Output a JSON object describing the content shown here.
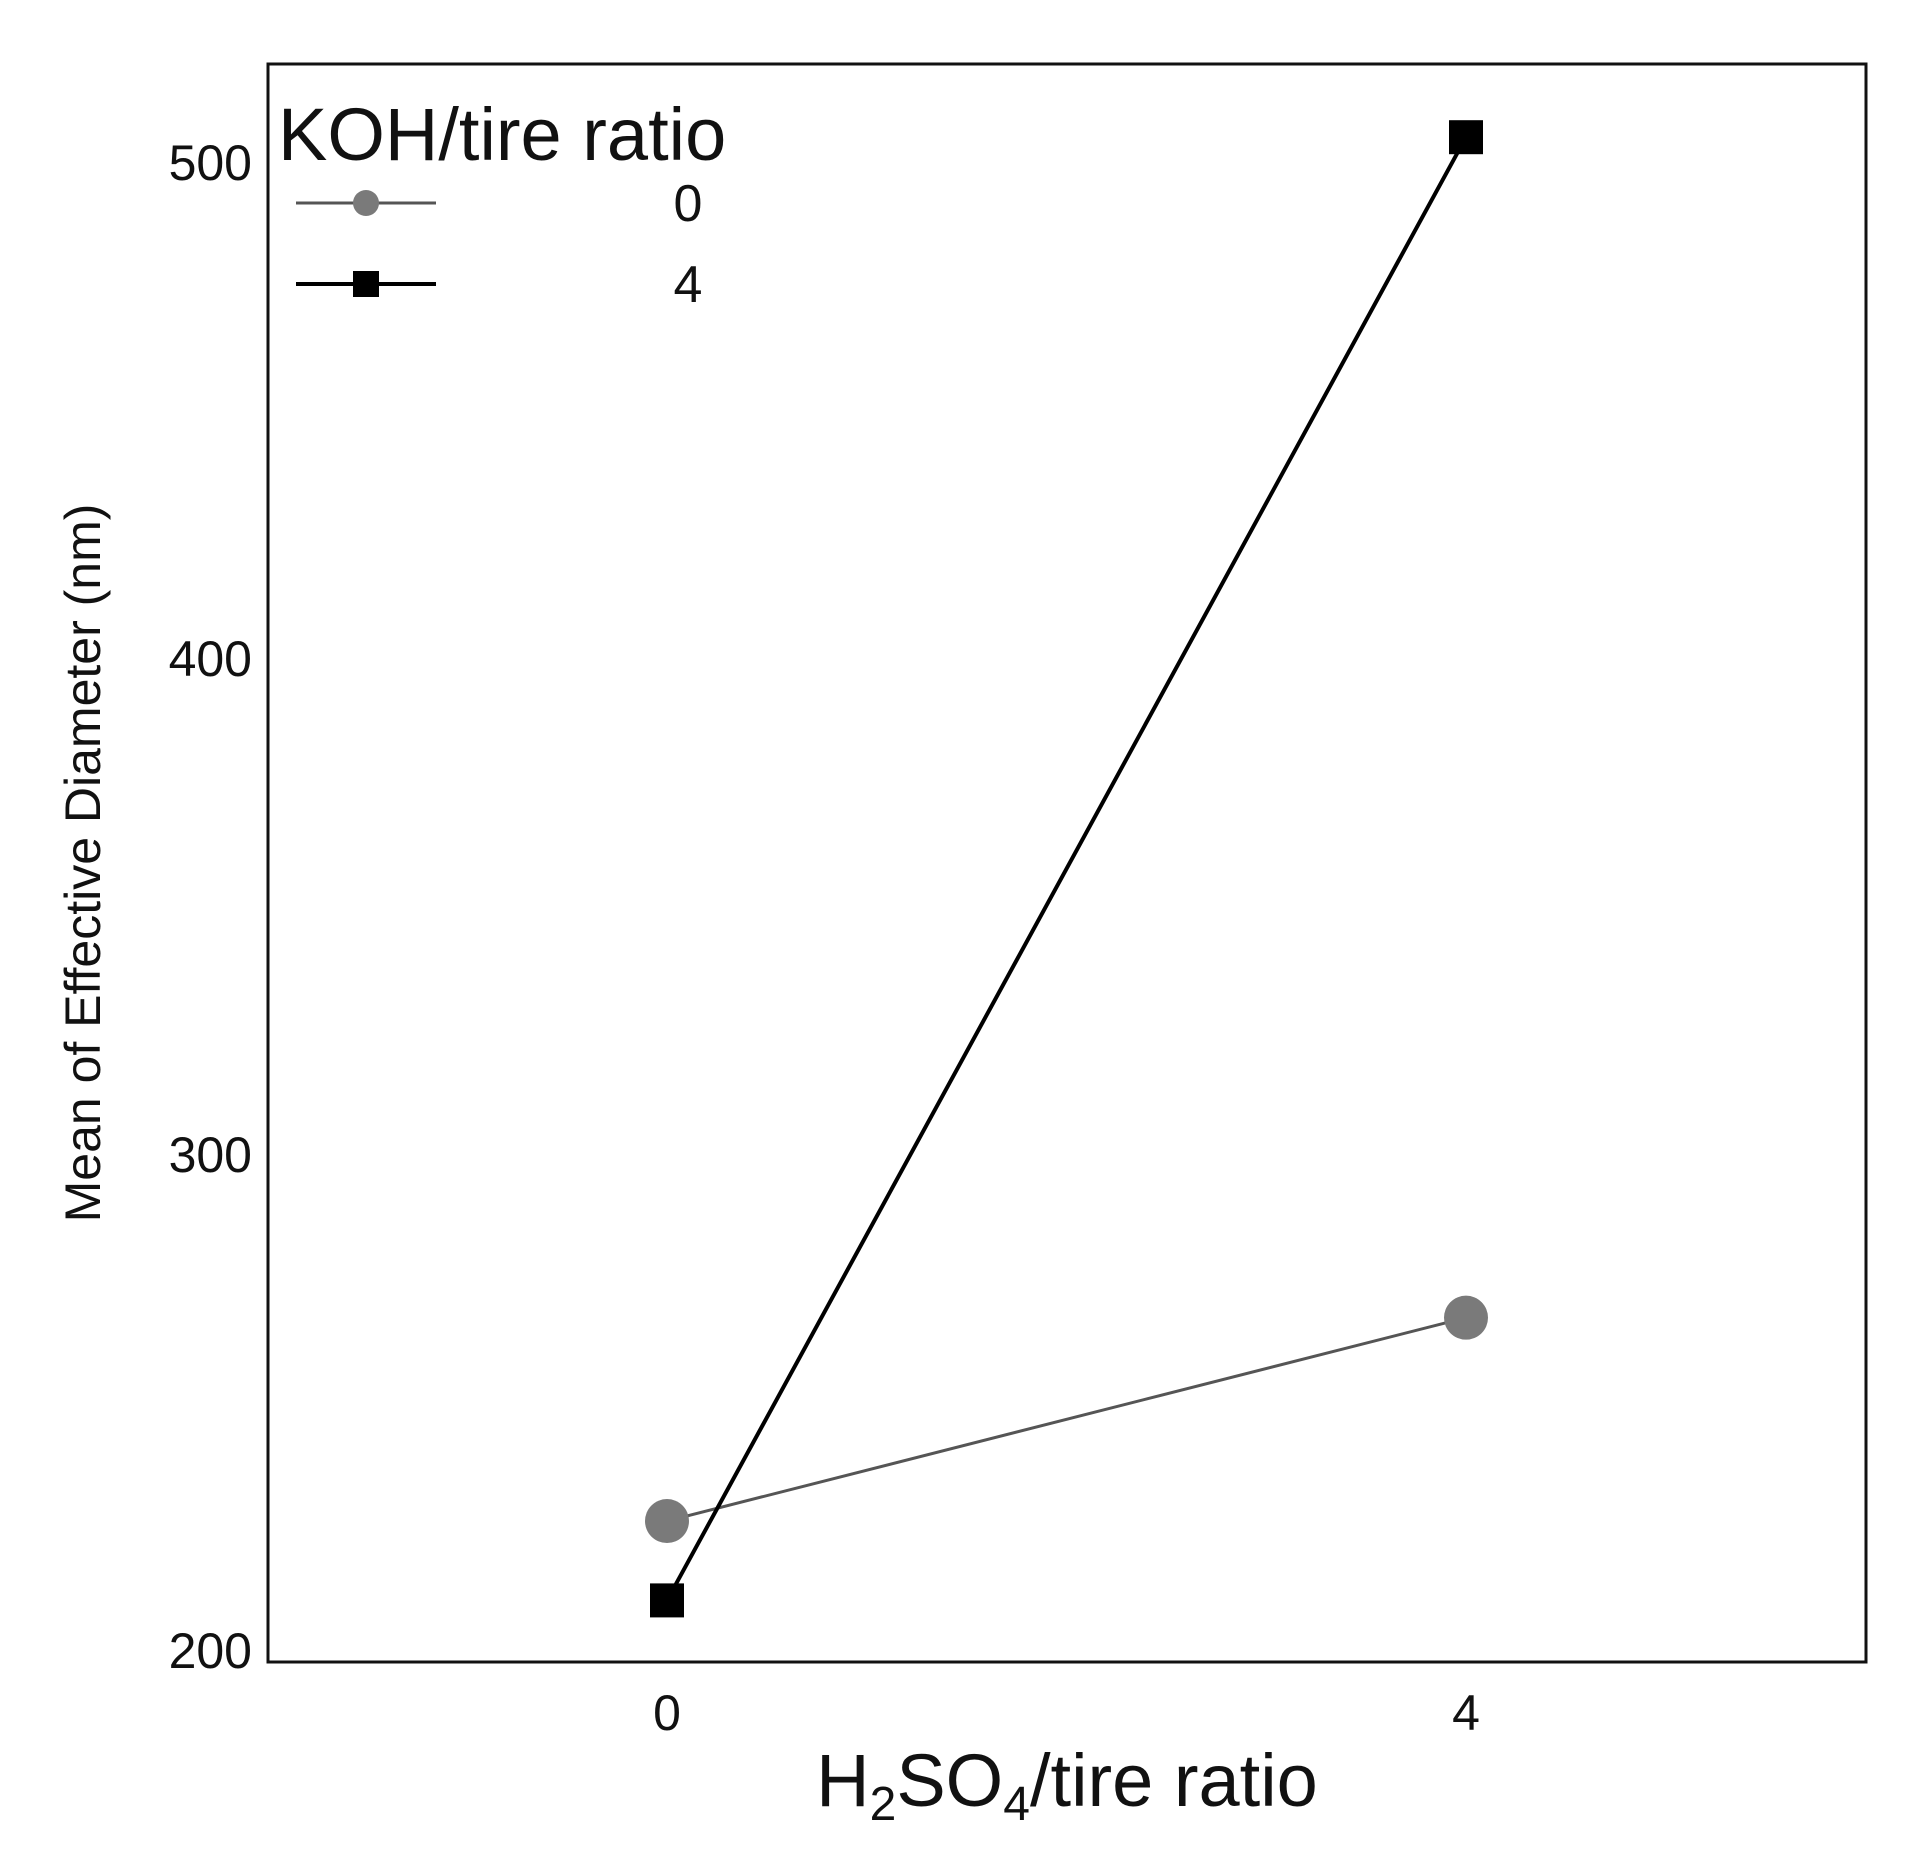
{
  "chart_data": {
    "type": "line",
    "title": "",
    "x_categories": [
      "0",
      "4"
    ],
    "xlabel": {
      "main": "H",
      "sub1": "2",
      "mid": "SO",
      "sub2": "4",
      "tail": "/tire ratio"
    },
    "ylabel": "Mean of Effective Diameter (nm)",
    "ylim": [
      200,
      510
    ],
    "yticks": [
      200,
      300,
      400,
      500
    ],
    "grid": false,
    "legend": {
      "title": "KOH/tire ratio",
      "position": "top-left"
    },
    "series": [
      {
        "name": "0",
        "marker": "circle",
        "color": "#7a7a7a",
        "line_color": "#555555",
        "values": [
          226,
          267
        ]
      },
      {
        "name": "4",
        "marker": "square",
        "color": "#000000",
        "line_color": "#000000",
        "values": [
          210,
          505
        ]
      }
    ]
  }
}
